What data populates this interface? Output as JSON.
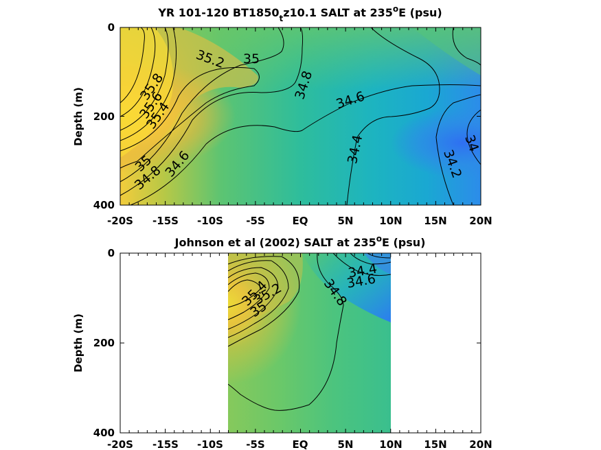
{
  "chart_data": [
    {
      "type": "heatmap",
      "title_main": "YR 101-120 BT1850",
      "title_sub": "t",
      "title_rest": "z10.1 SALT at 235",
      "title_sup": "o",
      "title_end": "E (psu)",
      "ylabel": "Depth (m)",
      "xlabel": "",
      "x_ticks": [
        "-20S",
        "-15S",
        "-10S",
        "-5S",
        "EQ",
        "5N",
        "10N",
        "15N",
        "20N"
      ],
      "y_ticks": [
        "0",
        "200",
        "400"
      ],
      "xlim": [
        -20,
        20
      ],
      "ylim": [
        0,
        400
      ],
      "data_extent_x": [
        -20,
        20
      ],
      "colormap": "parula",
      "contour_labels": [
        "35.2",
        "35",
        "34.8",
        "34.6",
        "35.8",
        "35.6",
        "35.4",
        "35",
        "34.8",
        "34.6",
        "34.4",
        "34.2",
        "34"
      ]
    },
    {
      "type": "heatmap",
      "title_main": "Johnson et al (2002) SALT at 235",
      "title_sup": "o",
      "title_end": "E (psu)",
      "ylabel": "Depth (m)",
      "xlabel": "",
      "x_ticks": [
        "-20S",
        "-15S",
        "-10S",
        "-5S",
        "EQ",
        "5N",
        "10N",
        "15N",
        "20N"
      ],
      "y_ticks": [
        "0",
        "200",
        "400"
      ],
      "xlim": [
        -20,
        20
      ],
      "ylim": [
        0,
        400
      ],
      "data_extent_x": [
        -8,
        10
      ],
      "colormap": "parula",
      "contour_labels": [
        "34.4",
        "34.6",
        "34.8",
        "35.4",
        "35.2",
        "35"
      ]
    }
  ]
}
